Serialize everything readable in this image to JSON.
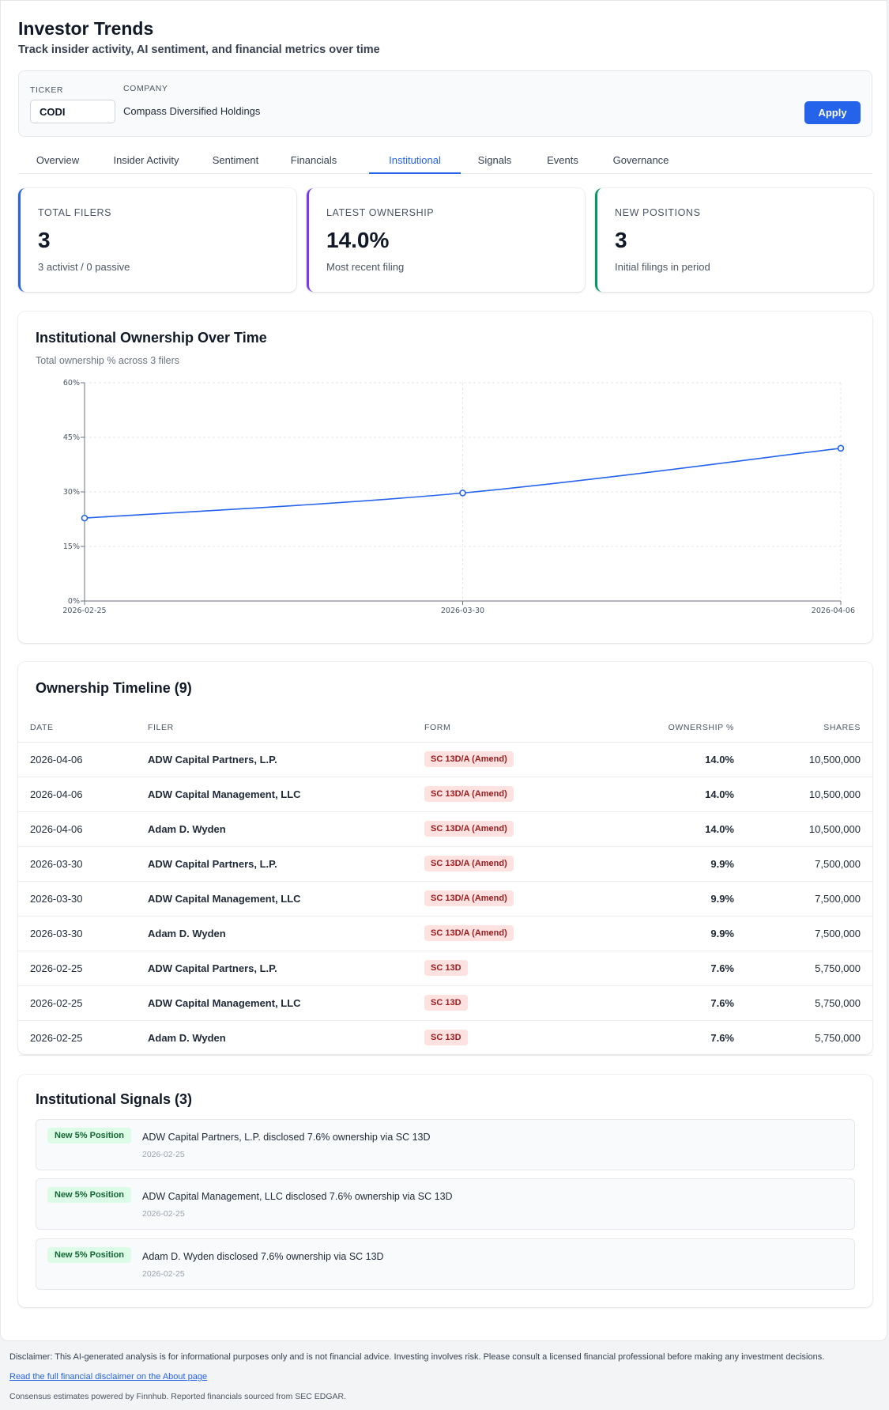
{
  "header": {
    "title": "Investor Trends",
    "subtitle": "Track insider activity, AI sentiment, and financial metrics over time"
  },
  "filter": {
    "ticker_label": "TICKER",
    "ticker_value": "CODI",
    "company_label": "COMPANY",
    "company_name": "Compass Diversified Holdings",
    "apply_label": "Apply"
  },
  "tabs": [
    {
      "label": "Overview"
    },
    {
      "label": "Insider Activity"
    },
    {
      "label": "Sentiment"
    },
    {
      "label": "Financials"
    },
    {
      "label": "Institutional",
      "active": true
    },
    {
      "label": "Signals"
    },
    {
      "label": "Events"
    },
    {
      "label": "Governance"
    }
  ],
  "stats": [
    {
      "label": "TOTAL FILERS",
      "value": "3",
      "sub": "3 activist / 0 passive",
      "color": "#2563eb"
    },
    {
      "label": "LATEST OWNERSHIP",
      "value": "14.0%",
      "sub": "Most recent filing",
      "color": "#7c3aed"
    },
    {
      "label": "NEW POSITIONS",
      "value": "3",
      "sub": "Initial filings in period",
      "color": "#059669"
    }
  ],
  "chart_panel": {
    "title": "Institutional Ownership Over Time",
    "subtitle": "Total ownership % across 3 filers"
  },
  "chart_data": {
    "type": "line",
    "x": [
      "2026-02-25",
      "2026-03-30",
      "2026-04-06"
    ],
    "series": [
      {
        "values": [
          22.8,
          29.7,
          42.0
        ],
        "color": "#2563eb"
      }
    ],
    "ylim": [
      0,
      60
    ],
    "yticks": [
      0,
      15,
      30,
      45,
      60
    ],
    "ytick_labels": [
      "0%",
      "15%",
      "30%",
      "45%",
      "60%"
    ],
    "grid": true
  },
  "timeline": {
    "title": "Ownership Timeline (9)",
    "columns": [
      "DATE",
      "FILER",
      "FORM",
      "OWNERSHIP %",
      "SHARES"
    ],
    "rows": [
      {
        "date": "2026-04-06",
        "filer": "ADW Capital Partners, L.P.",
        "form": "SC 13D/A (Amend)",
        "pct": "14.0%",
        "shares": "10,500,000"
      },
      {
        "date": "2026-04-06",
        "filer": "ADW Capital Management, LLC",
        "form": "SC 13D/A (Amend)",
        "pct": "14.0%",
        "shares": "10,500,000"
      },
      {
        "date": "2026-04-06",
        "filer": "Adam D. Wyden",
        "form": "SC 13D/A (Amend)",
        "pct": "14.0%",
        "shares": "10,500,000"
      },
      {
        "date": "2026-03-30",
        "filer": "ADW Capital Partners, L.P.",
        "form": "SC 13D/A (Amend)",
        "pct": "9.9%",
        "shares": "7,500,000"
      },
      {
        "date": "2026-03-30",
        "filer": "ADW Capital Management, LLC",
        "form": "SC 13D/A (Amend)",
        "pct": "9.9%",
        "shares": "7,500,000"
      },
      {
        "date": "2026-03-30",
        "filer": "Adam D. Wyden",
        "form": "SC 13D/A (Amend)",
        "pct": "9.9%",
        "shares": "7,500,000"
      },
      {
        "date": "2026-02-25",
        "filer": "ADW Capital Partners, L.P.",
        "form": "SC 13D",
        "pct": "7.6%",
        "shares": "5,750,000"
      },
      {
        "date": "2026-02-25",
        "filer": "ADW Capital Management, LLC",
        "form": "SC 13D",
        "pct": "7.6%",
        "shares": "5,750,000"
      },
      {
        "date": "2026-02-25",
        "filer": "Adam D. Wyden",
        "form": "SC 13D",
        "pct": "7.6%",
        "shares": "5,750,000"
      }
    ]
  },
  "signals": {
    "title": "Institutional Signals (3)",
    "items": [
      {
        "badge": "New 5% Position",
        "text": "ADW Capital Partners, L.P. disclosed 7.6% ownership via SC 13D",
        "date": "2026-02-25"
      },
      {
        "badge": "New 5% Position",
        "text": "ADW Capital Management, LLC disclosed 7.6% ownership via SC 13D",
        "date": "2026-02-25"
      },
      {
        "badge": "New 5% Position",
        "text": "Adam D. Wyden disclosed 7.6% ownership via SC 13D",
        "date": "2026-02-25"
      }
    ]
  },
  "footer": {
    "disclaimer": "Disclaimer: This AI-generated analysis is for informational purposes only and is not financial advice. Investing involves risk. Please consult a licensed financial professional before making any investment decisions.",
    "link": "Read the full financial disclaimer on the About page",
    "credits": "Consensus estimates powered by Finnhub. Reported financials sourced from SEC EDGAR."
  }
}
